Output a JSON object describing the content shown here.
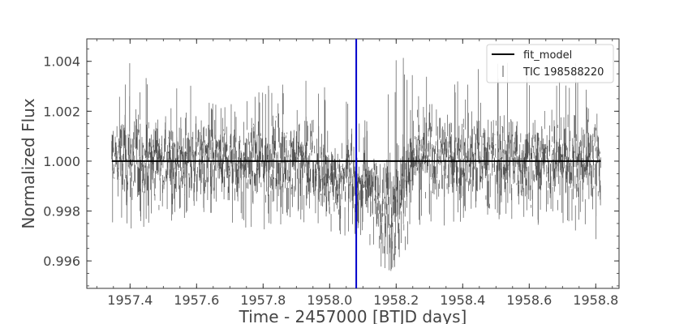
{
  "chart_data": {
    "type": "line",
    "title": "",
    "xlabel": "Time - 2457000 [BTJD days]",
    "ylabel": "Normalized Flux",
    "xlim": [
      1957.27,
      1958.87
    ],
    "ylim": [
      0.9949,
      1.0049
    ],
    "x_ticks": [
      1957.4,
      1957.6,
      1957.8,
      1958.0,
      1958.2,
      1958.4,
      1958.6,
      1958.8
    ],
    "x_tick_labels": [
      "1957.4",
      "1957.6",
      "1957.8",
      "1958.0",
      "1958.2",
      "1958.4",
      "1958.6",
      "1958.8"
    ],
    "y_ticks": [
      0.996,
      0.998,
      1.0,
      1.002,
      1.004
    ],
    "y_tick_labels": [
      "0.996",
      "0.998",
      "1.000",
      "1.002",
      "1.004"
    ],
    "legend": {
      "placement": "top-right",
      "entries": [
        "fit_model",
        "TIC 198588220"
      ]
    },
    "grid": false,
    "series": [
      {
        "name": "fit_model",
        "color": "#000000",
        "x": [
          1957.345,
          1958.815
        ],
        "y": [
          1.0,
          1.0
        ]
      },
      {
        "name": "TIC 198588220",
        "color": "#555555",
        "x_start": 1957.345,
        "x_end": 1958.815,
        "envelope": {
          "x": [
            1957.35,
            1957.4,
            1957.5,
            1957.6,
            1957.7,
            1957.8,
            1957.9,
            1957.95,
            1958.0,
            1958.05,
            1958.1,
            1958.15,
            1958.2,
            1958.25,
            1958.35,
            1958.45,
            1958.55,
            1958.65,
            1958.75,
            1958.81
          ],
          "upper": [
            1.0025,
            1.004,
            1.0032,
            1.0033,
            1.0025,
            1.0031,
            1.0038,
            1.0035,
            1.0028,
            1.0024,
            1.0023,
            1.0021,
            1.0044,
            1.0038,
            1.003,
            1.0038,
            1.004,
            1.0032,
            1.004,
            1.003
          ],
          "lower": [
            0.9975,
            0.9972,
            0.9976,
            0.9975,
            0.9973,
            0.9972,
            0.9975,
            0.9965,
            0.9972,
            0.997,
            0.9968,
            0.9958,
            0.9955,
            0.9972,
            0.9974,
            0.9976,
            0.9975,
            0.9974,
            0.9972,
            0.9968
          ],
          "center": [
            1.0001,
            1.0001,
            1.0,
            1.0,
            1.0,
            1.0,
            1.0001,
            0.9998,
            0.9992,
            0.9994,
            0.9992,
            0.9985,
            0.998,
            1.0001,
            1.0001,
            1.0001,
            1.0,
            1.0,
            1.0001,
            1.0
          ]
        }
      },
      {
        "name": "",
        "color": "#0000cc",
        "type": "vline",
        "x": 1958.08
      }
    ]
  }
}
